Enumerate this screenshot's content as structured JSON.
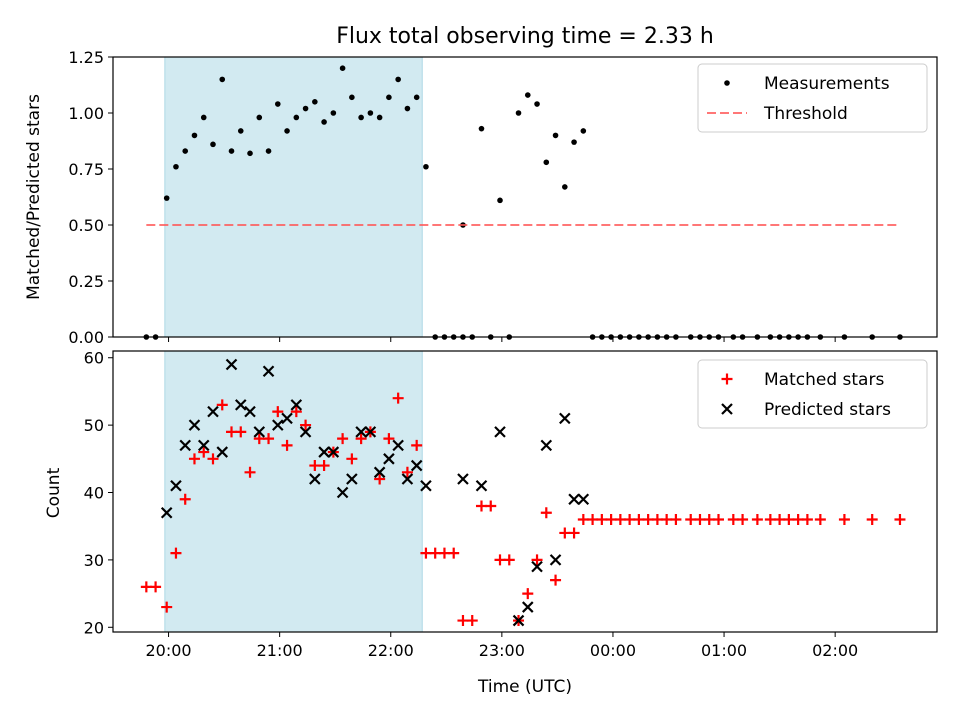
{
  "colors": {
    "shade": "#add8e6",
    "measurement": "#000000",
    "threshold": "#ff5555",
    "matched": "#ff0000",
    "predicted": "#000000"
  },
  "chart_data": [
    {
      "type": "scatter",
      "title": "Flux total observing time = 2.33 h",
      "xlabel": "",
      "ylabel": "Matched/Predicted stars",
      "xlim": [
        "19:30",
        "02:55"
      ],
      "ylim": [
        0,
        1.25
      ],
      "yticks": [
        "0.00",
        "0.25",
        "0.50",
        "0.75",
        "1.00",
        "1.25"
      ],
      "legend_position": "top-right",
      "shaded_interval": [
        "19:58",
        "22:17"
      ],
      "series": [
        {
          "name": "Measurements",
          "marker": "dot",
          "points": [
            [
              "19:48",
              0
            ],
            [
              "19:53",
              0
            ],
            [
              "19:59",
              0.62
            ],
            [
              "20:04",
              0.76
            ],
            [
              "20:09",
              0.83
            ],
            [
              "20:14",
              0.9
            ],
            [
              "20:19",
              0.98
            ],
            [
              "20:24",
              0.86
            ],
            [
              "20:29",
              1.15
            ],
            [
              "20:34",
              0.83
            ],
            [
              "20:39",
              0.92
            ],
            [
              "20:44",
              0.82
            ],
            [
              "20:49",
              0.98
            ],
            [
              "20:54",
              0.83
            ],
            [
              "20:59",
              1.04
            ],
            [
              "21:04",
              0.92
            ],
            [
              "21:09",
              0.98
            ],
            [
              "21:14",
              1.02
            ],
            [
              "21:19",
              1.05
            ],
            [
              "21:24",
              0.96
            ],
            [
              "21:29",
              1.0
            ],
            [
              "21:34",
              1.2
            ],
            [
              "21:39",
              1.07
            ],
            [
              "21:44",
              0.98
            ],
            [
              "21:49",
              1.0
            ],
            [
              "21:54",
              0.98
            ],
            [
              "21:59",
              1.07
            ],
            [
              "22:04",
              1.15
            ],
            [
              "22:09",
              1.02
            ],
            [
              "22:14",
              1.07
            ],
            [
              "22:19",
              0.76
            ],
            [
              "22:24",
              0
            ],
            [
              "22:29",
              0
            ],
            [
              "22:34",
              0
            ],
            [
              "22:39",
              0.5
            ],
            [
              "22:39",
              0
            ],
            [
              "22:44",
              0
            ],
            [
              "22:49",
              0.93
            ],
            [
              "22:54",
              0
            ],
            [
              "22:59",
              0.61
            ],
            [
              "23:04",
              0
            ],
            [
              "23:09",
              1.0
            ],
            [
              "23:14",
              1.08
            ],
            [
              "23:19",
              1.04
            ],
            [
              "23:24",
              0.78
            ],
            [
              "23:29",
              0.9
            ],
            [
              "23:34",
              0.67
            ],
            [
              "23:39",
              0.87
            ],
            [
              "23:44",
              0.92
            ],
            [
              "23:49",
              0
            ],
            [
              "23:54",
              0
            ],
            [
              "23:59",
              0
            ],
            [
              "00:04",
              0
            ],
            [
              "00:09",
              0
            ],
            [
              "00:14",
              0
            ],
            [
              "00:19",
              0
            ],
            [
              "00:24",
              0
            ],
            [
              "00:29",
              0
            ],
            [
              "00:34",
              0
            ],
            [
              "00:42",
              0
            ],
            [
              "00:47",
              0
            ],
            [
              "00:52",
              0
            ],
            [
              "00:57",
              0
            ],
            [
              "01:05",
              0
            ],
            [
              "01:10",
              0
            ],
            [
              "01:18",
              0
            ],
            [
              "01:25",
              0
            ],
            [
              "01:30",
              0
            ],
            [
              "01:35",
              0
            ],
            [
              "01:40",
              0
            ],
            [
              "01:45",
              0
            ],
            [
              "01:52",
              0
            ],
            [
              "02:05",
              0
            ],
            [
              "02:20",
              0
            ],
            [
              "02:35",
              0
            ]
          ]
        },
        {
          "name": "Threshold",
          "marker": "dashed-line",
          "points": [
            [
              "19:48",
              0.5
            ],
            [
              "02:35",
              0.5
            ]
          ]
        }
      ]
    },
    {
      "type": "scatter",
      "title": "",
      "xlabel": "Time (UTC)",
      "ylabel": "Count",
      "xlim": [
        "19:30",
        "02:55"
      ],
      "ylim": [
        19.3,
        61
      ],
      "yticks": [
        "20",
        "30",
        "40",
        "50",
        "60"
      ],
      "xticks": [
        "20:00",
        "21:00",
        "22:00",
        "23:00",
        "00:00",
        "01:00",
        "02:00"
      ],
      "legend_position": "top-right",
      "shaded_interval": [
        "19:58",
        "22:17"
      ],
      "series": [
        {
          "name": "Matched stars",
          "marker": "plus",
          "points": [
            [
              "19:48",
              26
            ],
            [
              "19:53",
              26
            ],
            [
              "19:59",
              23
            ],
            [
              "20:04",
              31
            ],
            [
              "20:09",
              39
            ],
            [
              "20:14",
              45
            ],
            [
              "20:19",
              46
            ],
            [
              "20:24",
              45
            ],
            [
              "20:29",
              53
            ],
            [
              "20:34",
              49
            ],
            [
              "20:39",
              49
            ],
            [
              "20:44",
              43
            ],
            [
              "20:49",
              48
            ],
            [
              "20:54",
              48
            ],
            [
              "20:59",
              52
            ],
            [
              "21:04",
              47
            ],
            [
              "21:09",
              52
            ],
            [
              "21:14",
              50
            ],
            [
              "21:19",
              44
            ],
            [
              "21:24",
              44
            ],
            [
              "21:29",
              46
            ],
            [
              "21:34",
              48
            ],
            [
              "21:39",
              45
            ],
            [
              "21:44",
              48
            ],
            [
              "21:49",
              49
            ],
            [
              "21:54",
              42
            ],
            [
              "21:59",
              48
            ],
            [
              "22:04",
              54
            ],
            [
              "22:09",
              43
            ],
            [
              "22:14",
              47
            ],
            [
              "22:19",
              31
            ],
            [
              "22:24",
              31
            ],
            [
              "22:29",
              31
            ],
            [
              "22:34",
              31
            ],
            [
              "22:39",
              21
            ],
            [
              "22:44",
              21
            ],
            [
              "22:49",
              38
            ],
            [
              "22:54",
              38
            ],
            [
              "22:59",
              30
            ],
            [
              "23:04",
              30
            ],
            [
              "23:09",
              21
            ],
            [
              "23:14",
              25
            ],
            [
              "23:19",
              30
            ],
            [
              "23:24",
              37
            ],
            [
              "23:29",
              27
            ],
            [
              "23:34",
              34
            ],
            [
              "23:39",
              34
            ],
            [
              "23:44",
              36
            ],
            [
              "23:49",
              36
            ],
            [
              "23:54",
              36
            ],
            [
              "23:59",
              36
            ],
            [
              "00:04",
              36
            ],
            [
              "00:09",
              36
            ],
            [
              "00:14",
              36
            ],
            [
              "00:19",
              36
            ],
            [
              "00:24",
              36
            ],
            [
              "00:29",
              36
            ],
            [
              "00:34",
              36
            ],
            [
              "00:42",
              36
            ],
            [
              "00:47",
              36
            ],
            [
              "00:52",
              36
            ],
            [
              "00:57",
              36
            ],
            [
              "01:05",
              36
            ],
            [
              "01:10",
              36
            ],
            [
              "01:18",
              36
            ],
            [
              "01:25",
              36
            ],
            [
              "01:30",
              36
            ],
            [
              "01:35",
              36
            ],
            [
              "01:40",
              36
            ],
            [
              "01:45",
              36
            ],
            [
              "01:52",
              36
            ],
            [
              "02:05",
              36
            ],
            [
              "02:20",
              36
            ],
            [
              "02:35",
              36
            ]
          ]
        },
        {
          "name": "Predicted stars",
          "marker": "x",
          "points": [
            [
              "19:59",
              37
            ],
            [
              "20:04",
              41
            ],
            [
              "20:09",
              47
            ],
            [
              "20:14",
              50
            ],
            [
              "20:19",
              47
            ],
            [
              "20:24",
              52
            ],
            [
              "20:29",
              46
            ],
            [
              "20:34",
              59
            ],
            [
              "20:39",
              53
            ],
            [
              "20:44",
              52
            ],
            [
              "20:49",
              49
            ],
            [
              "20:54",
              58
            ],
            [
              "20:59",
              50
            ],
            [
              "21:04",
              51
            ],
            [
              "21:09",
              53
            ],
            [
              "21:14",
              49
            ],
            [
              "21:19",
              42
            ],
            [
              "21:24",
              46
            ],
            [
              "21:29",
              46
            ],
            [
              "21:34",
              40
            ],
            [
              "21:39",
              42
            ],
            [
              "21:44",
              49
            ],
            [
              "21:49",
              49
            ],
            [
              "21:54",
              43
            ],
            [
              "21:59",
              45
            ],
            [
              "22:04",
              47
            ],
            [
              "22:09",
              42
            ],
            [
              "22:14",
              44
            ],
            [
              "22:19",
              41
            ],
            [
              "22:39",
              42
            ],
            [
              "22:49",
              41
            ],
            [
              "22:59",
              49
            ],
            [
              "23:09",
              21
            ],
            [
              "23:14",
              23
            ],
            [
              "23:19",
              29
            ],
            [
              "23:24",
              47
            ],
            [
              "23:29",
              30
            ],
            [
              "23:34",
              51
            ],
            [
              "23:39",
              39
            ],
            [
              "23:44",
              39
            ]
          ]
        }
      ]
    }
  ]
}
